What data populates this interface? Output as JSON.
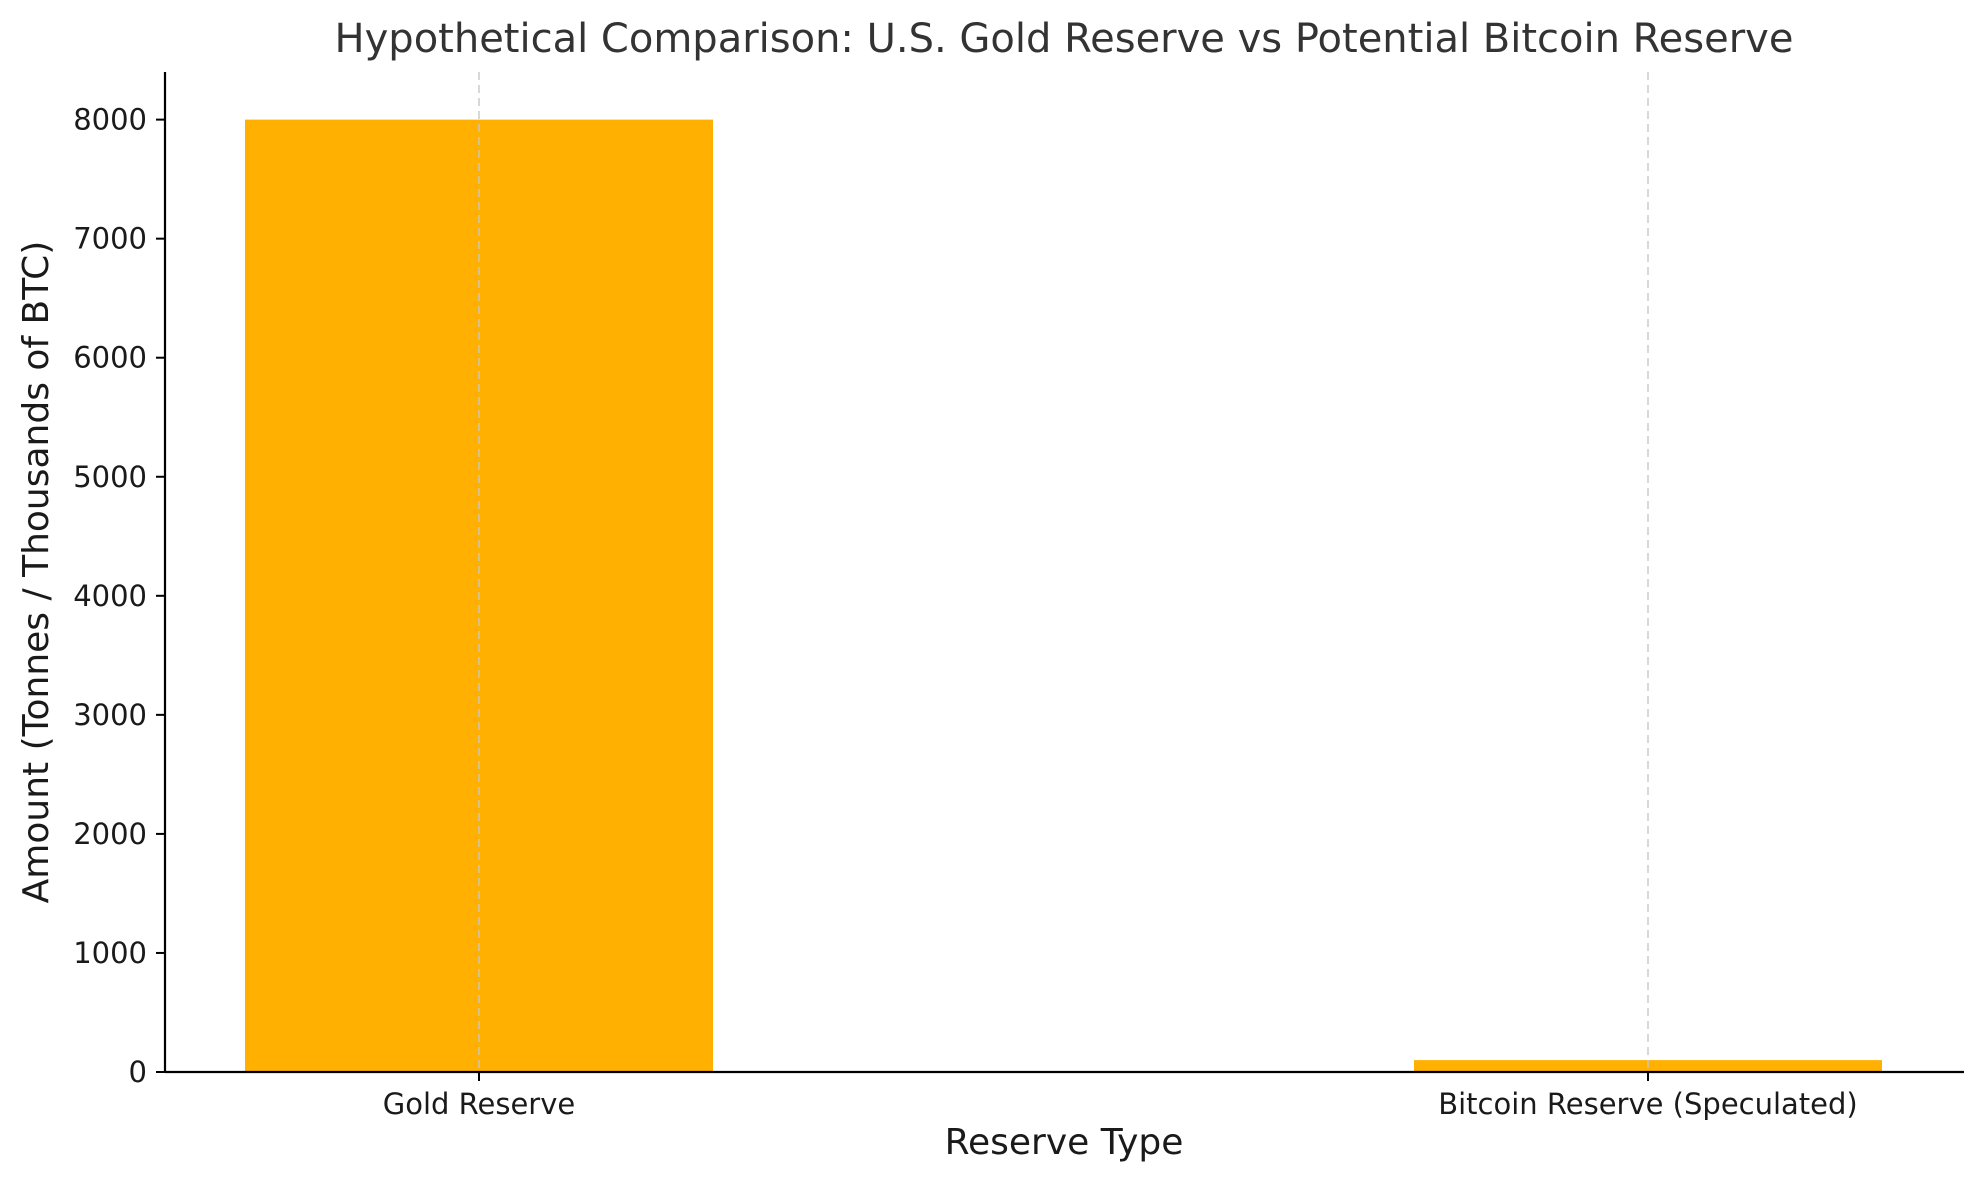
{
  "chart_data": {
    "type": "bar",
    "title": "Hypothetical Comparison: U.S. Gold Reserve vs Potential Bitcoin Reserve",
    "xlabel": "Reserve Type",
    "ylabel": "Amount (Tonnes / Thousands of BTC)",
    "categories": [
      "Gold Reserve",
      "Bitcoin Reserve (Speculated)"
    ],
    "values": [
      8000,
      100
    ],
    "ylim": [
      0,
      8400
    ],
    "yticks": [
      0,
      1000,
      2000,
      3000,
      4000,
      5000,
      6000,
      7000,
      8000
    ],
    "bar_color": "#FFB000",
    "grid": "x-axis dashed",
    "legend": "none"
  }
}
